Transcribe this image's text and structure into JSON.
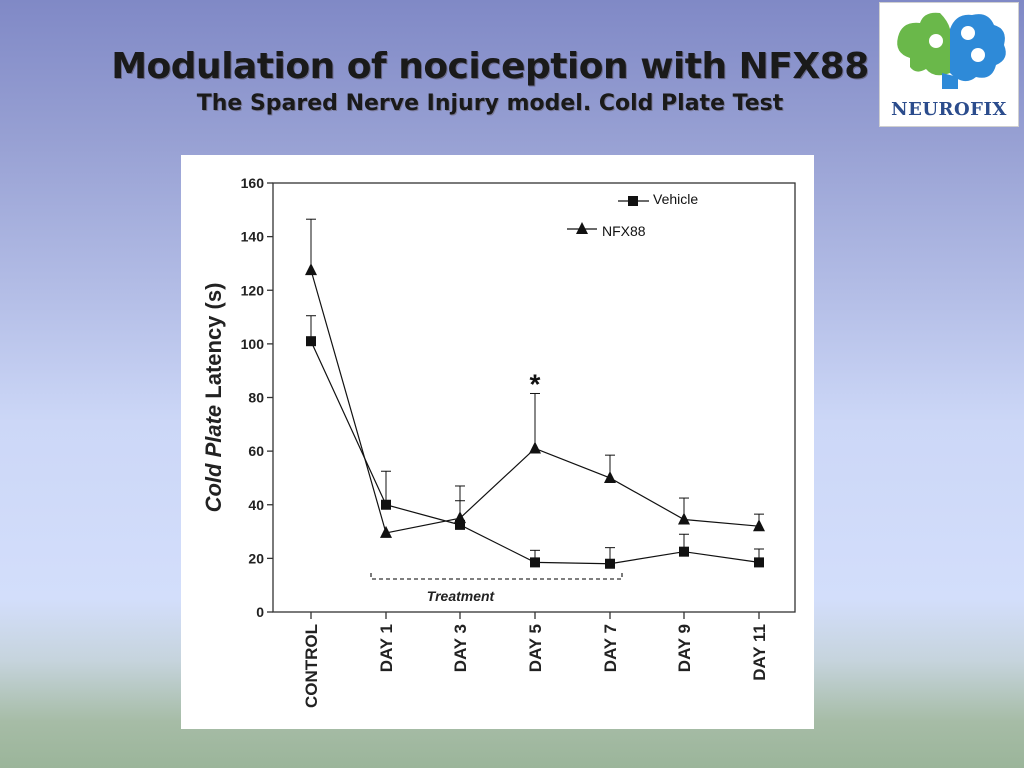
{
  "slide": {
    "title": "Modulation of nociception with NFX88",
    "subtitle": "The Spared Nerve Injury model. Cold Plate Test"
  },
  "logo": {
    "text": "NEUROFIX",
    "icon": "brain-puzzle-icon",
    "colors": {
      "blue": "#2e8ad8",
      "green": "#6ab84a",
      "text": "#2b4c8c"
    }
  },
  "chart_data": {
    "type": "line",
    "ylabel_italic": "Cold Plate",
    "ylabel_rest": " Latency (s)",
    "ylim": [
      0,
      160
    ],
    "yticks": [
      0,
      20,
      40,
      60,
      80,
      100,
      120,
      140,
      160
    ],
    "categories": [
      "CONTROL",
      "DAY 1",
      "DAY 3",
      "DAY 5",
      "DAY 7",
      "DAY 9",
      "DAY 11"
    ],
    "series": [
      {
        "name": "Vehicle",
        "marker": "square",
        "values": [
          101,
          40,
          32.5,
          18.5,
          18,
          22.5,
          18.5
        ],
        "errors": [
          9.5,
          12.5,
          9,
          4.5,
          6,
          6.5,
          5
        ]
      },
      {
        "name": "NFX88",
        "marker": "triangle",
        "values": [
          127.5,
          29.5,
          35,
          61,
          50,
          34.5,
          32
        ],
        "errors": [
          19,
          0,
          12,
          20.5,
          8.5,
          8,
          4.5
        ]
      }
    ],
    "annotations": [
      {
        "text": "*",
        "category": "DAY 5",
        "y": 86
      }
    ],
    "bracket": {
      "label": "Treatment",
      "from": "DAY 1",
      "to": "DAY 7"
    },
    "legend_position": "top-right",
    "grid": false
  }
}
